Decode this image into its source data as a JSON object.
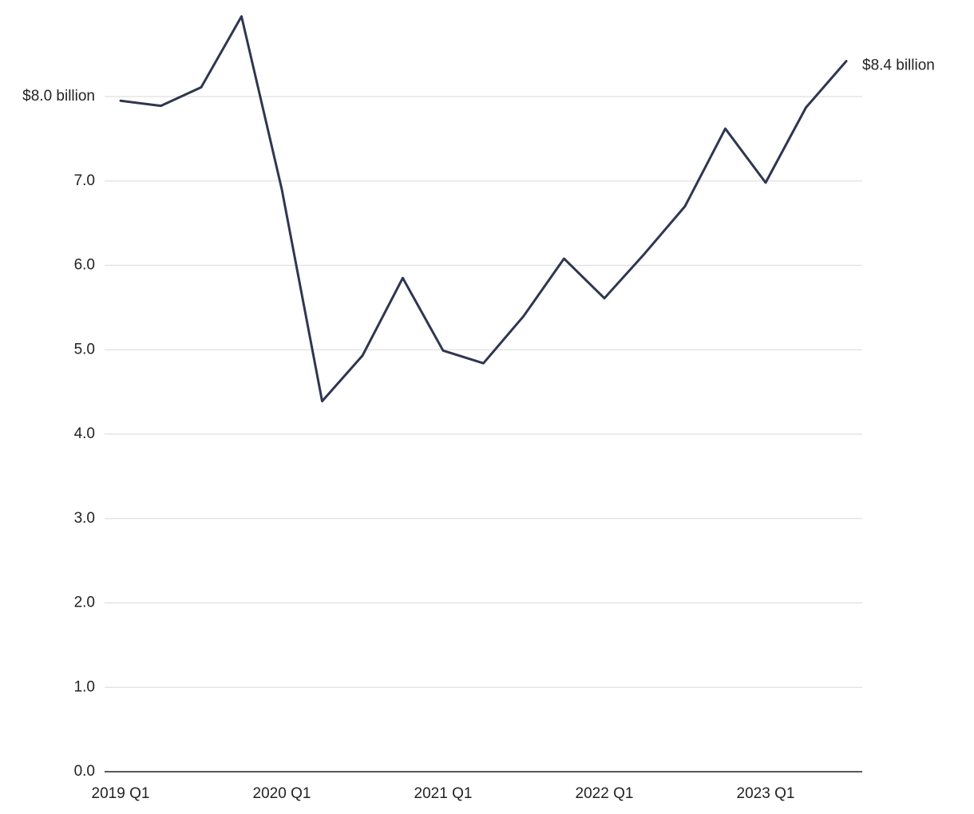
{
  "chart_data": {
    "type": "line",
    "categories": [
      "2019 Q1",
      null,
      null,
      null,
      "2020 Q1",
      null,
      null,
      null,
      "2021 Q1",
      null,
      null,
      null,
      "2022 Q1",
      null,
      null,
      null,
      "2023 Q1",
      null,
      null
    ],
    "series": [
      {
        "color": "#2f3650",
        "values": [
          7.95,
          7.89,
          8.11,
          8.95,
          6.9,
          4.39,
          4.93,
          5.85,
          4.99,
          4.84,
          5.4,
          6.08,
          5.61,
          6.14,
          6.7,
          7.62,
          6.98,
          7.87,
          8.42
        ],
        "value_labels": [
          null,
          null,
          null,
          null,
          null,
          null,
          null,
          null,
          null,
          null,
          null,
          null,
          null,
          null,
          null,
          null,
          null,
          null,
          "$8.4 billion"
        ]
      }
    ],
    "ylim": [
      0,
      9
    ],
    "yticks": [
      {
        "value": 0,
        "label": "0.0"
      },
      {
        "value": 1,
        "label": "1.0"
      },
      {
        "value": 2,
        "label": "2.0"
      },
      {
        "value": 3,
        "label": "3.0"
      },
      {
        "value": 4,
        "label": "4.0"
      },
      {
        "value": 5,
        "label": "5.0"
      },
      {
        "value": 6,
        "label": "6.0"
      },
      {
        "value": 7,
        "label": "7.0"
      },
      {
        "value": 8,
        "label": "$8.0 billion"
      }
    ],
    "grid": true
  }
}
